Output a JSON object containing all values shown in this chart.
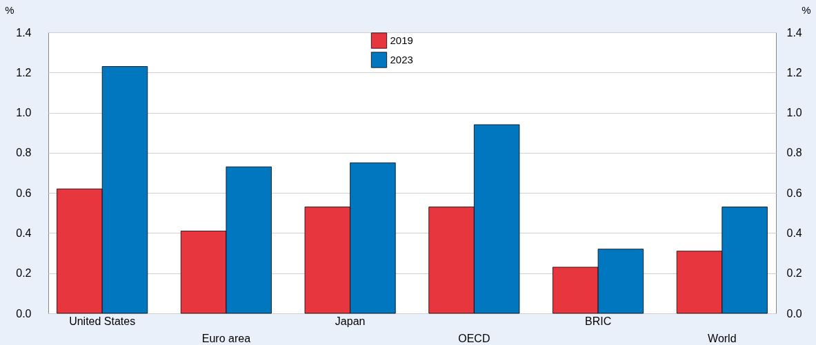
{
  "chart_data": {
    "type": "bar",
    "categories": [
      "United States",
      "Euro area",
      "Japan",
      "OECD",
      "BRIC",
      "World"
    ],
    "series": [
      {
        "name": "2019",
        "color": "#e8363f",
        "values": [
          0.62,
          0.41,
          0.53,
          0.53,
          0.23,
          0.31
        ]
      },
      {
        "name": "2023",
        "color": "#0077bf",
        "values": [
          1.23,
          0.73,
          0.75,
          0.94,
          0.32,
          0.53
        ]
      }
    ],
    "ylabel": "%",
    "y2label": "%",
    "ylim": [
      0,
      1.4
    ],
    "yticks": [
      {
        "value": 0,
        "label": "0.0"
      },
      0.2,
      0.4,
      0.6,
      0.8,
      {
        "value": 1,
        "label": "1.0"
      },
      1.2,
      1.4
    ],
    "y2lim": [
      0,
      1.4
    ],
    "y2ticks": [
      {
        "value": 0,
        "label": "0.0"
      },
      0.2,
      0.4,
      0.6,
      0.8,
      {
        "value": 1,
        "label": "1.0"
      },
      1.2,
      1.4
    ],
    "grid": "y",
    "legend": "top"
  }
}
